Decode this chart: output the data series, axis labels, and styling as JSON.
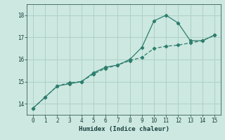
{
  "xlabel": "Humidex (Indice chaleur)",
  "line1_x": [
    0,
    1,
    2,
    3,
    4,
    5,
    6,
    7,
    8,
    9,
    10,
    11,
    12,
    13,
    14,
    15
  ],
  "line1_y": [
    13.8,
    14.3,
    14.8,
    14.9,
    15.0,
    15.4,
    15.65,
    15.75,
    16.0,
    16.55,
    17.75,
    18.0,
    17.65,
    16.85,
    16.85,
    17.1
  ],
  "line2_x": [
    0,
    1,
    2,
    3,
    4,
    5,
    6,
    7,
    8,
    9,
    10,
    11,
    12,
    13,
    14,
    15
  ],
  "line2_y": [
    13.8,
    14.3,
    14.8,
    14.95,
    15.0,
    15.35,
    15.6,
    15.75,
    15.95,
    16.1,
    16.5,
    16.6,
    16.65,
    16.75,
    16.85,
    17.1
  ],
  "line_color": "#2e7d6e",
  "bg_color": "#cce8e0",
  "grid_color": "#afd0c8",
  "tick_color": "#1a4040",
  "xlim": [
    -0.5,
    15.5
  ],
  "ylim": [
    13.5,
    18.5
  ],
  "yticks": [
    14,
    15,
    16,
    17,
    18
  ],
  "xticks": [
    0,
    1,
    2,
    3,
    4,
    5,
    6,
    7,
    8,
    9,
    10,
    11,
    12,
    13,
    14,
    15
  ]
}
